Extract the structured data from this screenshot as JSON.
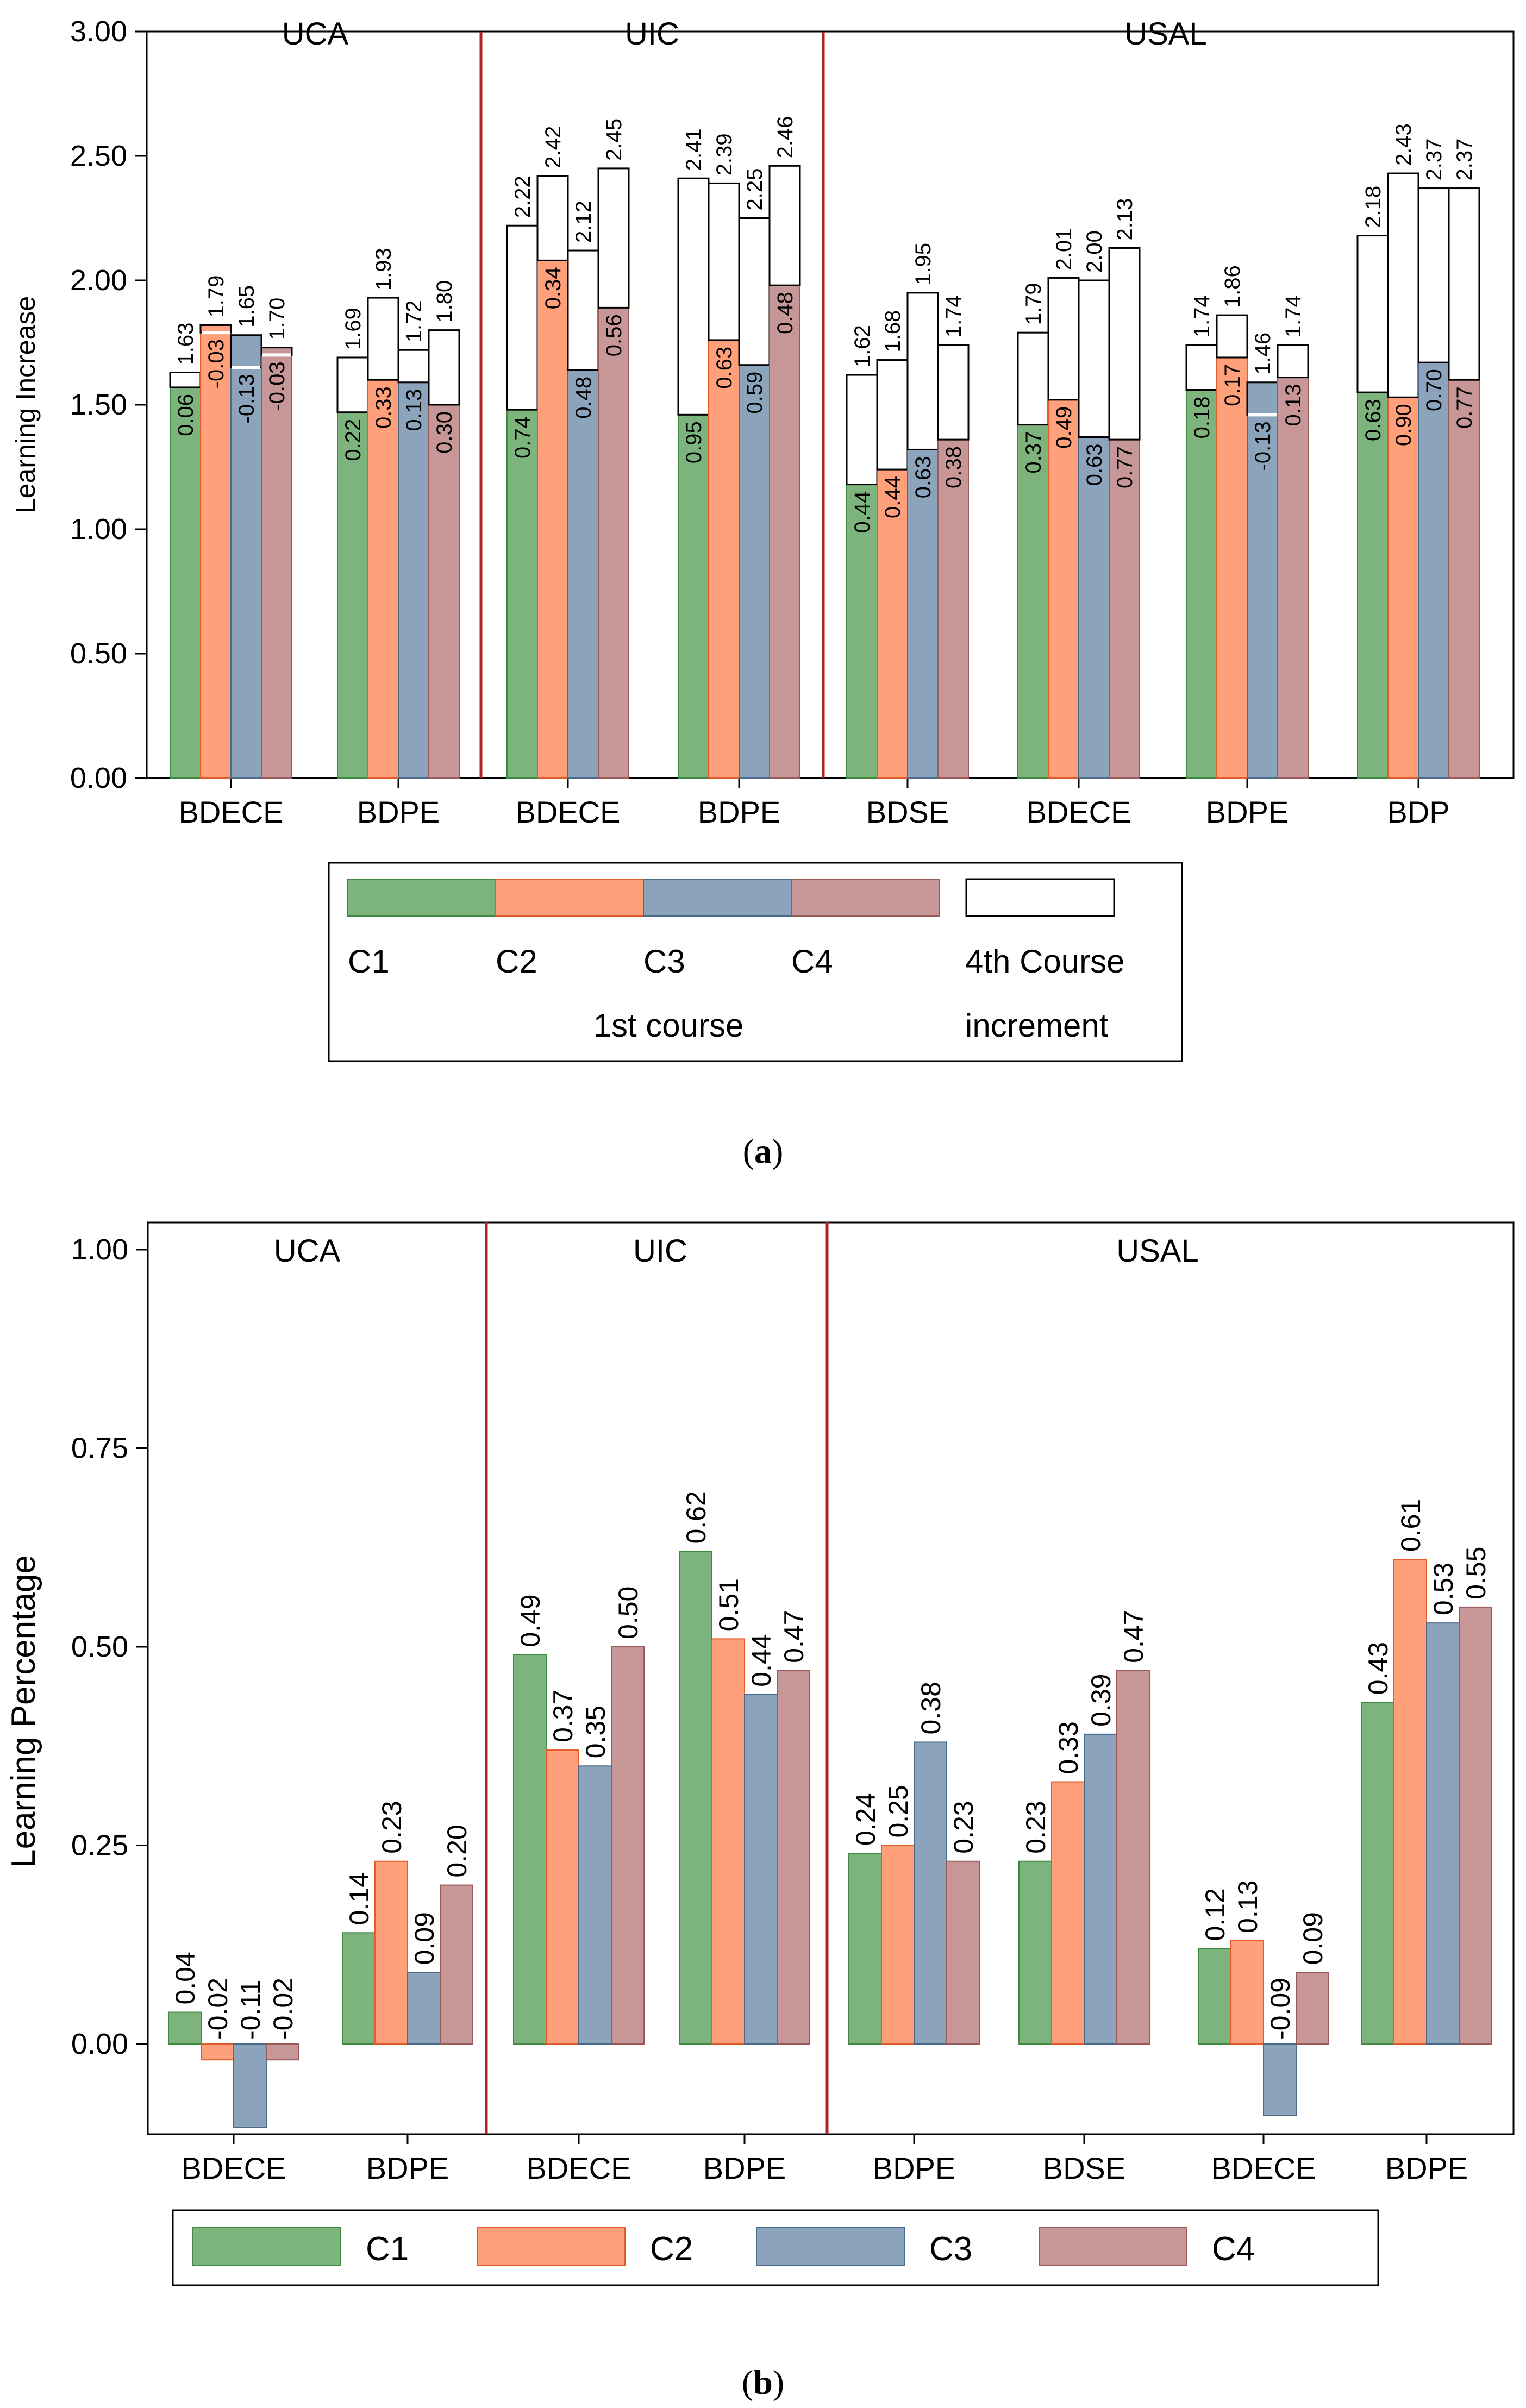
{
  "colors": {
    "C1": "#7db37d",
    "C2": "#ffa07a",
    "C3": "#8ba3bb",
    "C4": "#c79797",
    "divider": "#b22222",
    "increment": "#ffffff",
    "negMarker": "#0000ff"
  },
  "chart_data": [
    {
      "id": "a",
      "type": "bar",
      "title": "",
      "xlabel": "",
      "ylabel": "Learning Increase",
      "ylim": [
        0,
        3
      ],
      "yticks": [
        "0.00",
        "0.50",
        "1.00",
        "1.50",
        "2.00",
        "2.50",
        "3.00"
      ],
      "grid": false,
      "groups": [
        "UCA",
        "UIC",
        "USAL"
      ],
      "categories": [
        "BDECE",
        "BDPE",
        "BDECE",
        "BDPE",
        "BDSE",
        "BDECE",
        "BDPE",
        "BDP"
      ],
      "category_group": [
        0,
        0,
        1,
        1,
        2,
        2,
        2,
        2
      ],
      "series_names": [
        "C1",
        "C2",
        "C3",
        "C4"
      ],
      "first_course": [
        [
          1.57,
          1.82,
          1.78,
          1.73
        ],
        [
          1.47,
          1.6,
          1.59,
          1.5
        ],
        [
          1.48,
          2.08,
          1.64,
          1.89
        ],
        [
          1.46,
          1.76,
          1.66,
          1.98
        ],
        [
          1.18,
          1.24,
          1.32,
          1.36
        ],
        [
          1.42,
          1.52,
          1.37,
          1.36
        ],
        [
          1.56,
          1.69,
          1.59,
          1.61
        ],
        [
          1.55,
          1.53,
          1.67,
          1.6
        ]
      ],
      "fourth_course": [
        [
          1.63,
          1.79,
          1.65,
          1.7
        ],
        [
          1.69,
          1.93,
          1.72,
          1.8
        ],
        [
          2.22,
          2.42,
          2.12,
          2.45
        ],
        [
          2.41,
          2.39,
          2.25,
          2.46
        ],
        [
          1.62,
          1.68,
          1.95,
          1.74
        ],
        [
          1.79,
          2.01,
          2.0,
          2.13
        ],
        [
          1.74,
          1.86,
          1.46,
          1.74
        ],
        [
          2.18,
          2.43,
          2.37,
          2.37
        ]
      ],
      "increment_labels": [
        [
          "0.06",
          "-0.03",
          "-0.13",
          "-0.03"
        ],
        [
          "0.22",
          "0.33",
          "0.13",
          "0.30"
        ],
        [
          "0.74",
          "0.34",
          "0.48",
          "0.56"
        ],
        [
          "0.95",
          "0.63",
          "0.59",
          "0.48"
        ],
        [
          "0.44",
          "0.44",
          "0.63",
          "0.38"
        ],
        [
          "0.37",
          "0.49",
          "0.63",
          "0.77"
        ],
        [
          "0.18",
          "0.17",
          "-0.13",
          "0.13"
        ],
        [
          "0.63",
          "0.90",
          "0.70",
          "0.77"
        ]
      ],
      "total_labels": [
        [
          "1.63",
          "1.79",
          "1.65",
          "1.70"
        ],
        [
          "1.69",
          "1.93",
          "1.72",
          "1.80"
        ],
        [
          "2.22",
          "2.42",
          "2.12",
          "2.45"
        ],
        [
          "2.41",
          "2.39",
          "2.25",
          "2.46"
        ],
        [
          "1.62",
          "1.68",
          "1.95",
          "1.74"
        ],
        [
          "1.79",
          "2.01",
          "2.00",
          "2.13"
        ],
        [
          "1.74",
          "1.86",
          "1.46",
          "1.74"
        ],
        [
          "2.18",
          "2.43",
          "2.37",
          "2.37"
        ]
      ],
      "legend": {
        "entries": [
          "C1",
          "C2",
          "C3",
          "C4"
        ],
        "group_label": "1st course",
        "increment_label_line1": "4th Course",
        "increment_label_line2": "increment",
        "position": "bottom"
      }
    },
    {
      "id": "b",
      "type": "bar",
      "title": "",
      "xlabel": "",
      "ylabel": "Learning Percentage",
      "ylim": [
        -0.12,
        1.0
      ],
      "yticks": [
        "0.00",
        "0.25",
        "0.50",
        "0.75",
        "1.00"
      ],
      "grid": false,
      "groups": [
        "UCA",
        "UIC",
        "USAL"
      ],
      "categories": [
        "BDECE",
        "BDPE",
        "BDECE",
        "BDPE",
        "BDPE",
        "BDSE",
        "BDECE",
        "BDPE"
      ],
      "category_group": [
        0,
        0,
        1,
        1,
        2,
        2,
        2,
        2
      ],
      "series_names": [
        "C1",
        "C2",
        "C3",
        "C4"
      ],
      "values": [
        [
          0.04,
          -0.02,
          -0.105,
          -0.02
        ],
        [
          0.14,
          0.23,
          0.09,
          0.2
        ],
        [
          0.49,
          0.37,
          0.35,
          0.5
        ],
        [
          0.62,
          0.51,
          0.44,
          0.47
        ],
        [
          0.24,
          0.25,
          0.38,
          0.23
        ],
        [
          0.23,
          0.33,
          0.39,
          0.47
        ],
        [
          0.12,
          0.13,
          -0.09,
          0.09
        ],
        [
          0.43,
          0.61,
          0.53,
          0.55
        ]
      ],
      "value_labels": [
        [
          "0.04",
          "-0.02",
          "-0.11",
          "-0.02"
        ],
        [
          "0.14",
          "0.23",
          "0.09",
          "0.20"
        ],
        [
          "0.49",
          "0.37",
          "0.35",
          "0.50"
        ],
        [
          "0.62",
          "0.51",
          "0.44",
          "0.47"
        ],
        [
          "0.24",
          "0.25",
          "0.38",
          "0.23"
        ],
        [
          "0.23",
          "0.33",
          "0.39",
          "0.47"
        ],
        [
          "0.12",
          "0.13",
          "-0.09",
          "0.09"
        ],
        [
          "0.43",
          "0.61",
          "0.53",
          "0.55"
        ]
      ],
      "legend": {
        "entries": [
          "C1",
          "C2",
          "C3",
          "C4"
        ],
        "position": "bottom"
      }
    }
  ],
  "captions": {
    "a": "a",
    "b": "b"
  }
}
